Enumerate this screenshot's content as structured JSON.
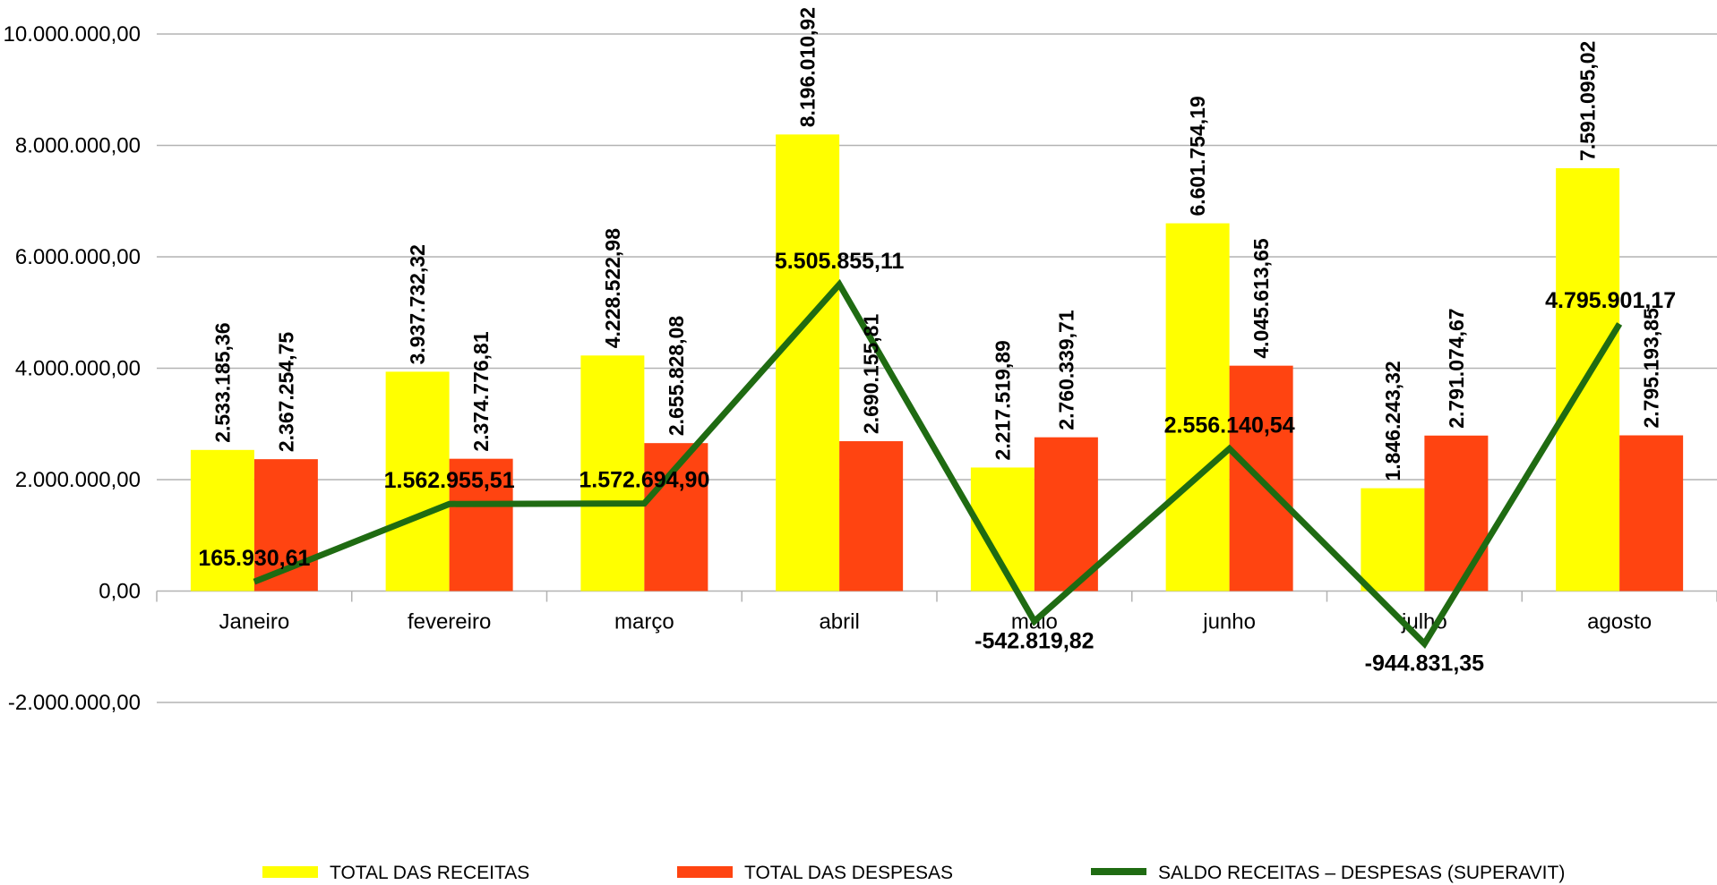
{
  "chart_data": {
    "type": "bar",
    "categories": [
      "Janeiro",
      "fevereiro",
      "março",
      "abril",
      "maio",
      "junho",
      "julho",
      "agosto"
    ],
    "series": [
      {
        "name": "TOTAL DAS RECEITAS",
        "type": "bar",
        "color": "#ffff00",
        "values": [
          2533185.36,
          3937732.32,
          4228522.98,
          8196010.92,
          2217519.89,
          6601754.19,
          1846243.32,
          7591095.02
        ],
        "labels": [
          "2.533.185,36",
          "3.937.732,32",
          "4.228.522,98",
          "8.196.010,92",
          "2.217.519,89",
          "6.601.754,19",
          "1.846.243,32",
          "7.591.095,02"
        ]
      },
      {
        "name": "TOTAL DAS DESPESAS",
        "type": "bar",
        "color": "#ff4411",
        "values": [
          2367254.75,
          2374776.81,
          2655828.08,
          2690155.81,
          2760339.71,
          4045613.65,
          2791074.67,
          2795193.85
        ],
        "labels": [
          "2.367.254,75",
          "2.374.776,81",
          "2.655.828,08",
          "2.690.155,81",
          "2.760.339,71",
          "4.045.613,65",
          "2.791.074,67",
          "2.795.193,85"
        ]
      },
      {
        "name": "SALDO RECEITAS – DESPESAS (SUPERAVIT)",
        "type": "line",
        "color": "#1f6b12",
        "values": [
          165930.61,
          1562955.51,
          1572694.9,
          5505855.11,
          -542819.82,
          2556140.54,
          -944831.35,
          4795901.17
        ],
        "labels": [
          "165.930,61",
          "1.562.955,51",
          "1.572.694,90",
          "5.505.855,11",
          "-542.819,82",
          "2.556.140,54",
          "-944.831,35",
          "4.795.901,17"
        ]
      }
    ],
    "y_ticks": [
      -2000000,
      0,
      2000000,
      4000000,
      6000000,
      8000000,
      10000000
    ],
    "y_tick_labels": [
      "-2.000.000,00",
      "0,00",
      "2.000.000,00",
      "4.000.000,00",
      "6.000.000,00",
      "8.000.000,00",
      "10.000.000,00"
    ],
    "ylim": [
      -2000000,
      10000000
    ],
    "title": "",
    "xlabel": "",
    "ylabel": "",
    "grid": true,
    "legend_position": "bottom"
  }
}
